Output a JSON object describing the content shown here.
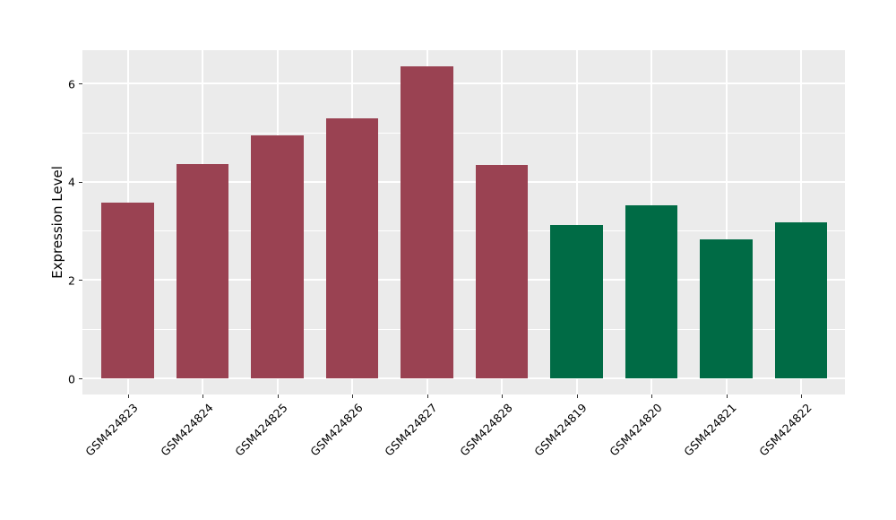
{
  "chart_data": {
    "type": "bar",
    "title": "",
    "xlabel": "",
    "ylabel": "Expression Level",
    "categories": [
      "GSM424823",
      "GSM424824",
      "GSM424825",
      "GSM424826",
      "GSM424827",
      "GSM424828",
      "GSM424819",
      "GSM424820",
      "GSM424821",
      "GSM424822"
    ],
    "values": [
      3.57,
      4.36,
      4.94,
      5.29,
      6.35,
      4.35,
      3.13,
      3.53,
      2.83,
      3.17
    ],
    "bar_groups": [
      "red",
      "red",
      "red",
      "red",
      "red",
      "red",
      "green",
      "green",
      "green",
      "green"
    ],
    "group_colors": {
      "red": "#9A4252",
      "green": "#006B45"
    },
    "ylim": [
      -0.32,
      6.68
    ],
    "yticks_major": [
      0,
      2,
      4,
      6
    ],
    "yticks_minor": [
      1,
      3,
      5
    ],
    "ytick_labels": [
      "0",
      "2",
      "4",
      "6"
    ],
    "grid": true,
    "legend": "none",
    "panel_background": "#EBEBEB",
    "grid_color": "#FFFFFF",
    "tick_color": "#333333",
    "text_color": "#000000",
    "x_labels_rotation_deg": 45
  }
}
